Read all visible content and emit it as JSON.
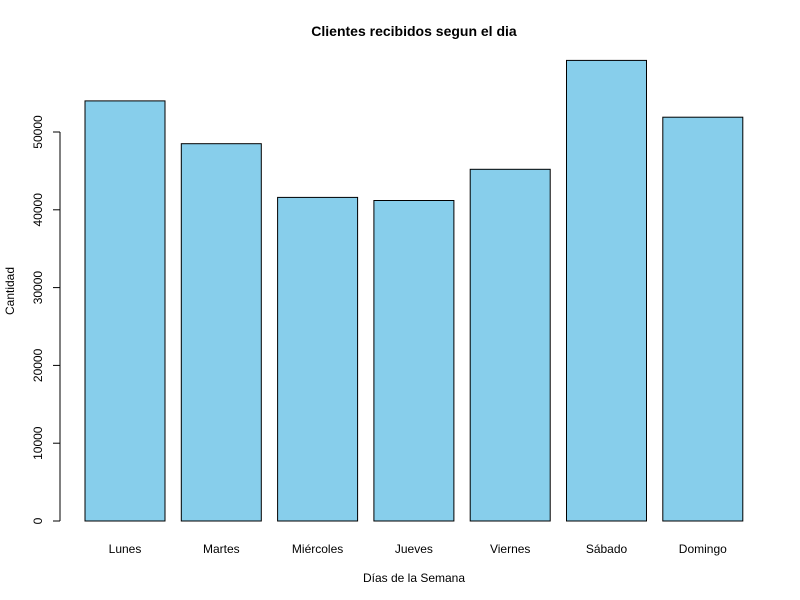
{
  "chart_data": {
    "type": "bar",
    "title": "Clientes recibidos segun el dia",
    "xlabel": "Días de la Semana",
    "ylabel": "Cantidad",
    "categories": [
      "Lunes",
      "Martes",
      "Miércoles",
      "Jueves",
      "Viernes",
      "Sábado",
      "Domingo"
    ],
    "values": [
      54000,
      48500,
      41600,
      41200,
      45200,
      59200,
      51900
    ],
    "ylim": [
      0,
      60000
    ],
    "yticks": [
      0,
      10000,
      20000,
      30000,
      40000,
      50000
    ],
    "ytick_labels": [
      "0",
      "10000",
      "20000",
      "30000",
      "40000",
      "50000"
    ],
    "bar_color": "#87CEEB",
    "bar_border_color": "#000000",
    "grid": false,
    "legend": "none"
  }
}
